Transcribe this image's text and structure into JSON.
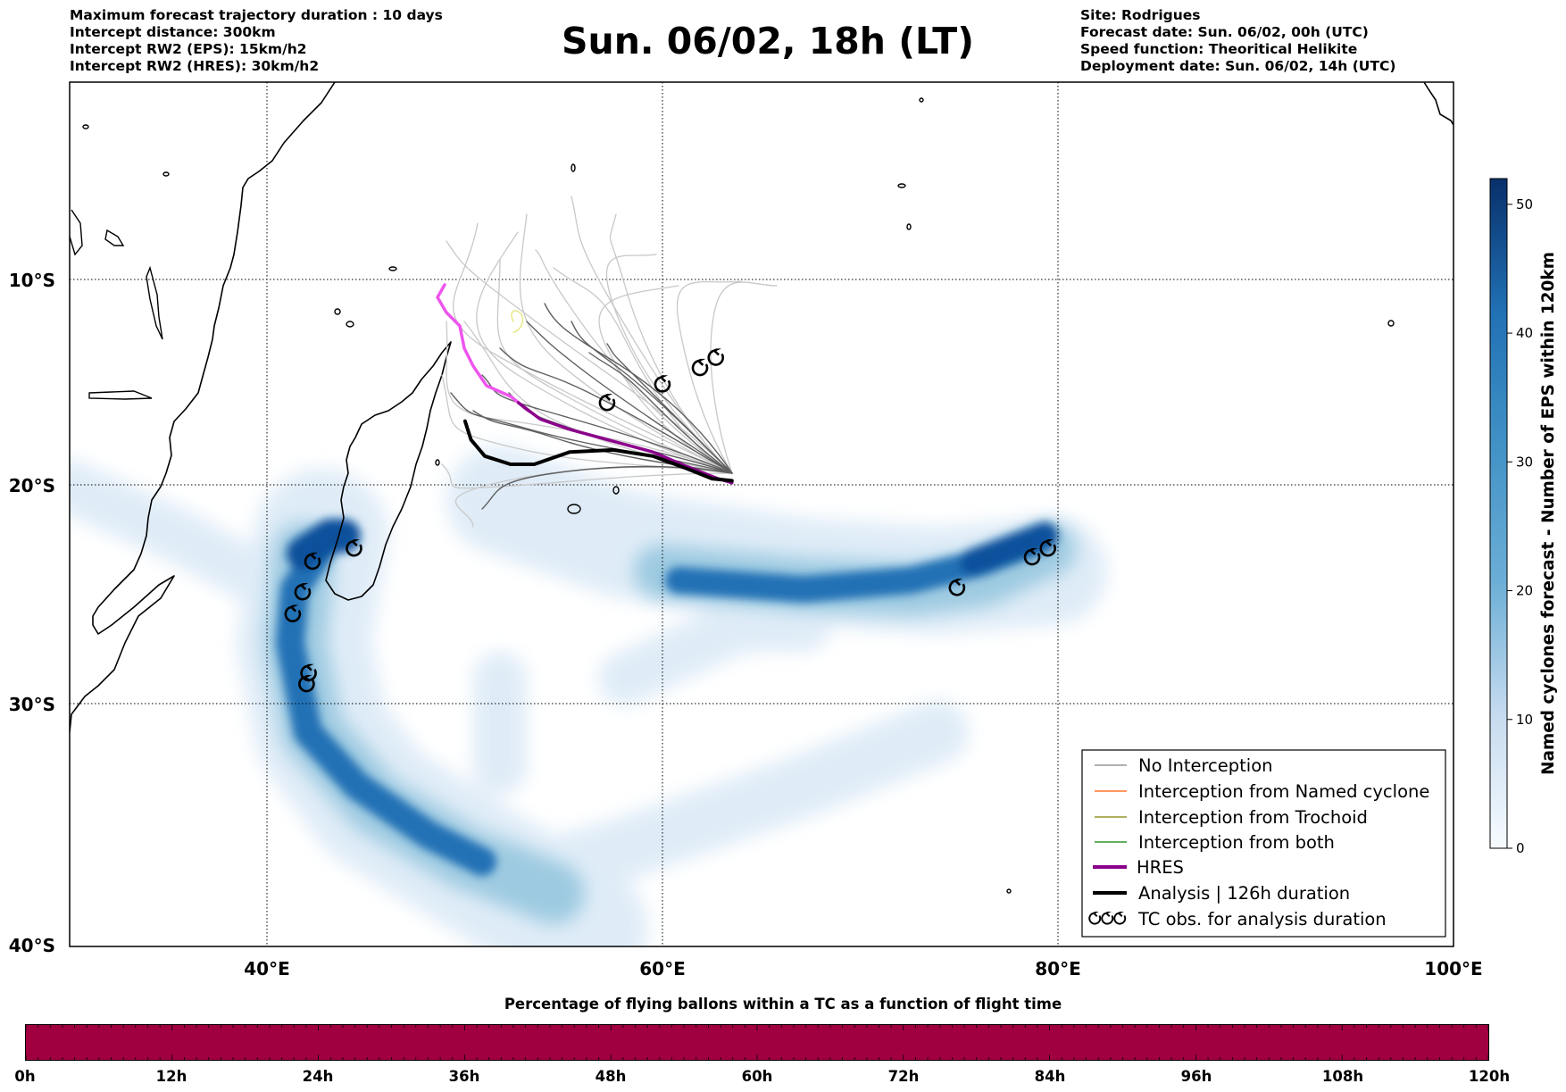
{
  "header_left": [
    "Maximum forecast trajectory duration : 10 days",
    "Intercept distance: 300km",
    "Intercept RW2 (EPS):  15km/h2",
    "Intercept RW2 (HRES): 30km/h2"
  ],
  "title": "Sun. 06/02, 18h (LT)",
  "header_right": [
    "Site: Rodrigues",
    "Forecast date: Sun. 06/02, 00h (UTC)",
    "Speed function: Theoritical Helikite",
    "Deployment date: Sun. 06/02, 14h (UTC)"
  ],
  "map": {
    "lon_range": [
      30,
      100
    ],
    "lat_range": [
      -40,
      1
    ],
    "lat_ticks": [
      "10°S",
      "20°S",
      "30°S",
      "40°S"
    ],
    "lon_ticks": [
      "40°E",
      "60°E",
      "80°E",
      "100°E"
    ],
    "grid": true,
    "colors": {
      "no_interception": "#808080",
      "named_cyclone": "#ff5a00",
      "trochoid": "#808000",
      "both": "#008000",
      "hres": "#8b008b",
      "hres_start": "#ee55ee",
      "analysis": "#000000",
      "density_low": "#deebf7",
      "density_high": "#08306b"
    },
    "hres_track": [
      [
        49,
        -10.2
      ],
      [
        48.7,
        -10.8
      ],
      [
        49.2,
        -11.6
      ],
      [
        50.1,
        -12.5
      ],
      [
        50.6,
        -13.8
      ],
      [
        50.9,
        -15
      ],
      [
        51.8,
        -15.6
      ],
      [
        52.7,
        -16
      ],
      [
        53.8,
        -16.8
      ],
      [
        55.3,
        -17.3
      ],
      [
        57.2,
        -17.8
      ],
      [
        59.5,
        -18.4
      ],
      [
        61.2,
        -19.1
      ],
      [
        62.8,
        -19.7
      ],
      [
        63.5,
        -19.9
      ]
    ],
    "analysis_track": [
      [
        50,
        -16.9
      ],
      [
        50.3,
        -17.8
      ],
      [
        51,
        -18.6
      ],
      [
        52.3,
        -19
      ],
      [
        53.5,
        -19
      ],
      [
        55.3,
        -18.4
      ],
      [
        57.5,
        -18.3
      ],
      [
        59.5,
        -18.6
      ],
      [
        61.2,
        -19.2
      ],
      [
        62.5,
        -19.7
      ],
      [
        63.5,
        -19.8
      ]
    ],
    "tc_obs": [
      [
        57.2,
        -16
      ],
      [
        60,
        -15.1
      ],
      [
        61.9,
        -14.3
      ],
      [
        62.7,
        -13.8
      ],
      [
        44.4,
        -22.9
      ],
      [
        42.3,
        -23.5
      ],
      [
        41.8,
        -24.9
      ],
      [
        41.3,
        -25.9
      ],
      [
        42.1,
        -28.6
      ],
      [
        42,
        -29.1
      ],
      [
        74.9,
        -24.7
      ],
      [
        78.7,
        -23.3
      ],
      [
        79.5,
        -22.9
      ]
    ]
  },
  "legend": {
    "items": [
      {
        "label": "No Interception",
        "style": "thin",
        "color": "#808080"
      },
      {
        "label": "Interception from Named cyclone",
        "style": "thin",
        "color": "#ff5a00"
      },
      {
        "label": "Interception from Trochoid",
        "style": "thin",
        "color": "#808000"
      },
      {
        "label": "Interception from both",
        "style": "thin",
        "color": "#008000"
      },
      {
        "label": "HRES",
        "style": "thick",
        "color": "#8b008b"
      },
      {
        "label": "Analysis | 126h duration",
        "style": "thick",
        "color": "#000000"
      },
      {
        "label": "TC obs. for analysis duration",
        "style": "cyclone",
        "color": "#000000"
      }
    ]
  },
  "colorbar": {
    "label": "Named cyclones forecast - Number of EPS within 120km",
    "range": [
      0,
      52
    ],
    "ticks": [
      "0",
      "10",
      "20",
      "30",
      "40",
      "50"
    ]
  },
  "time_bar": {
    "title": "Percentage of flying ballons within a TC as a function of flight time",
    "labels": [
      "0h",
      "12h",
      "24h",
      "36h",
      "48h",
      "60h",
      "72h",
      "84h",
      "96h",
      "108h",
      "120h"
    ],
    "color": "#a10040"
  }
}
